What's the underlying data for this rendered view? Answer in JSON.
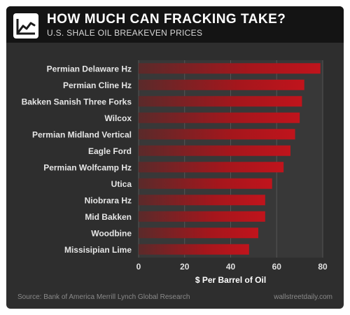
{
  "header": {
    "title": "HOW MUCH CAN FRACKING TAKE?",
    "subtitle": "U.S. SHALE OIL BREAKEVEN PRICES",
    "logo_icon": "line-chart-icon"
  },
  "chart_data": {
    "type": "bar",
    "orientation": "horizontal",
    "categories": [
      "Permian Delaware Hz",
      "Permian Cline Hz",
      "Bakken Sanish Three Forks",
      "Wilcox",
      "Permian Midland Vertical",
      "Eagle Ford",
      "Permian Wolfcamp Hz",
      "Utica",
      "Niobrara Hz",
      "Mid Bakken",
      "Woodbine",
      "Missisipian Lime"
    ],
    "values": [
      79,
      72,
      71,
      70,
      68,
      66,
      63,
      58,
      55,
      55,
      52,
      48
    ],
    "xlabel": "$ Per Barrel of Oil",
    "ylabel": "",
    "xlim": [
      0,
      80
    ],
    "xticks": [
      "0",
      "20",
      "40",
      "60",
      "80"
    ],
    "grid": true,
    "bar_color": "#c0141c",
    "bar_color_light": "#5a2a2a"
  },
  "footer": {
    "source": "Source: Bank of America Merrill Lynch Global Research",
    "brand": "wallstreetdaily.com"
  }
}
